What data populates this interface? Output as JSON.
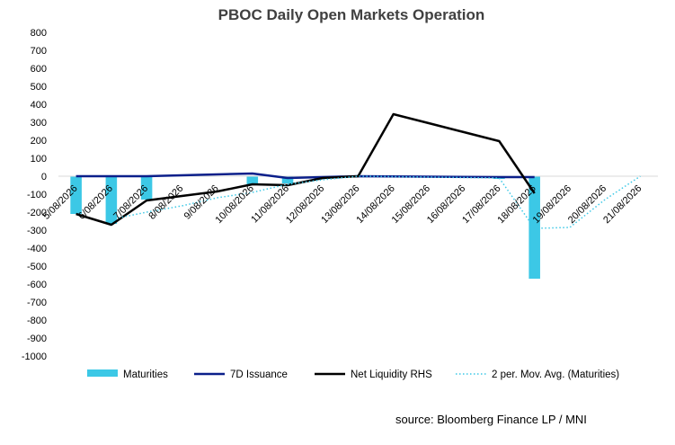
{
  "chart_data": {
    "type": "bar",
    "title": "PBOC Daily Open Markets Operation",
    "source": "source: Bloomberg Finance LP / MNI",
    "ylim": [
      -1000,
      800
    ],
    "yticks": [
      800,
      700,
      600,
      500,
      400,
      300,
      200,
      100,
      0,
      -100,
      -200,
      -300,
      -400,
      -500,
      -600,
      -700,
      -800,
      -900,
      -1000
    ],
    "grid": false,
    "legend_position": "bottom",
    "categories": [
      "5/08/2026",
      "6/08/2026",
      "7/08/2026",
      "8/08/2026",
      "9/08/2026",
      "10/08/2026",
      "11/08/2026",
      "12/08/2026",
      "13/08/2026",
      "14/08/2026",
      "15/08/2026",
      "16/08/2026",
      "17/08/2026",
      "18/08/2026",
      "19/08/2026",
      "20/08/2026",
      "21/08/2026"
    ],
    "series": [
      {
        "name": "Maturities",
        "kind": "bar",
        "color": "#3cc8e6",
        "values": [
          -210,
          -265,
          -130,
          null,
          null,
          -45,
          -40,
          null,
          0,
          null,
          null,
          null,
          -15,
          -570,
          null,
          null,
          null
        ]
      },
      {
        "name": "7D Issuance",
        "kind": "line",
        "color": "#0b1f8a",
        "values": [
          0,
          0,
          0,
          null,
          null,
          15,
          -10,
          null,
          0,
          null,
          null,
          null,
          -5,
          -5,
          null,
          null,
          null
        ]
      },
      {
        "name": "Net Liquidity RHS",
        "kind": "line",
        "color": "#000000",
        "values": [
          -210,
          -270,
          -135,
          -110,
          -85,
          -45,
          -50,
          -10,
          0,
          345,
          295,
          245,
          195,
          -95,
          null,
          null,
          null
        ]
      },
      {
        "name": "2 per. Mov. Avg. (Maturities)",
        "kind": "dotted-line",
        "color": "#3cc8e6",
        "values": [
          null,
          -240,
          -200,
          -165,
          -120,
          -90,
          -45,
          -20,
          0,
          null,
          null,
          null,
          -10,
          -290,
          -285,
          -130,
          0
        ]
      }
    ]
  }
}
